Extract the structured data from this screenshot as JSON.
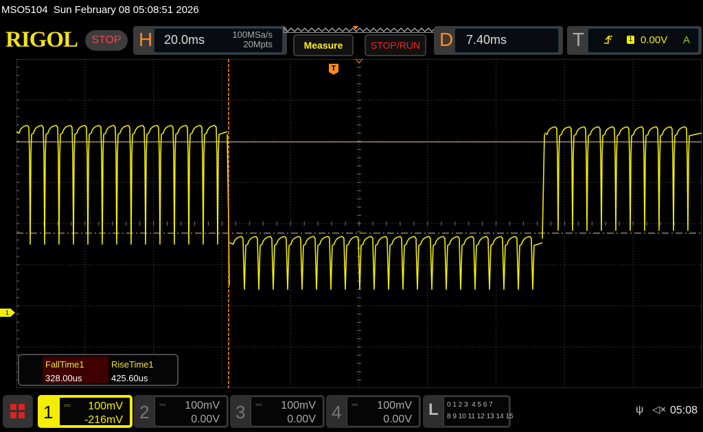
{
  "status_bar": {
    "model": "MSO5104",
    "datetime": "Sun February 08 05:08:51 2026"
  },
  "header": {
    "logo": "RIGOL",
    "run_state": "STOP",
    "horizontal": {
      "letter": "H",
      "timebase": "20.0ms",
      "sample_rate": "100MSa/s",
      "memory_depth": "20Mpts"
    },
    "measure_label": "Measure",
    "stop_run_label": "STOP/RUN",
    "delay": {
      "letter": "D",
      "value": "7.40ms"
    },
    "trigger": {
      "letter": "T",
      "slope_icon": "rising-edge-icon",
      "source": "1",
      "level": "0.00V",
      "mode": "A"
    }
  },
  "measurements": [
    {
      "name": "FallTime1",
      "value": "328.00us"
    },
    {
      "name": "RiseTime1",
      "value": "425.60us"
    }
  ],
  "channels": [
    {
      "num": "1",
      "scale": "100mV",
      "offset": "-216mV",
      "active": true,
      "color": "#f3ee00"
    },
    {
      "num": "2",
      "scale": "100mV",
      "offset": "0.00V",
      "active": false
    },
    {
      "num": "3",
      "scale": "100mV",
      "offset": "0.00V",
      "active": false
    },
    {
      "num": "4",
      "scale": "100mV",
      "offset": "0.00V",
      "active": false
    }
  ],
  "logic": {
    "letter": "L",
    "row1": "0 1 2 3  4 5 6 7",
    "row2": "8 9 10 11 12 13 14 15"
  },
  "ch1_marker": "1",
  "trigger_pos_marker": "T",
  "clock": "05:08",
  "colors": {
    "ch1": "#f3ee00",
    "accent": "#ff8c1a",
    "stop": "#f04848"
  }
}
